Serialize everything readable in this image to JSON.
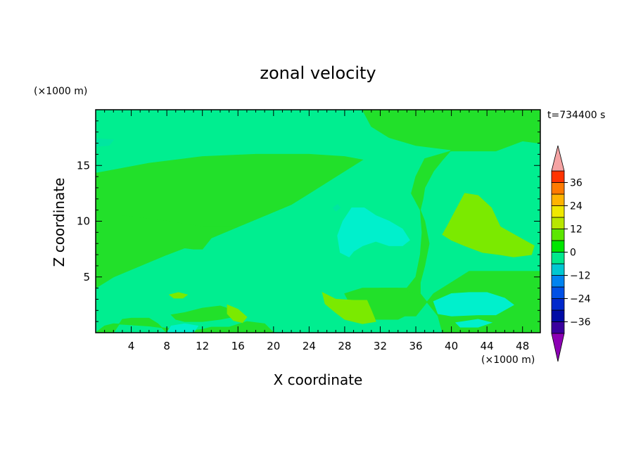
{
  "chart_data": {
    "type": "heatmap",
    "title": "zonal velocity",
    "xlabel": "X coordinate",
    "ylabel": "Z coordinate",
    "x_unit": "(×1000 m)",
    "y_unit": "(×1000 m)",
    "time_label": "t=734400 s",
    "xlim": [
      0,
      50
    ],
    "ylim": [
      0,
      20
    ],
    "x_ticks": [
      4,
      8,
      12,
      16,
      20,
      24,
      28,
      32,
      36,
      40,
      44,
      48
    ],
    "y_ticks": [
      5,
      10,
      15
    ],
    "colorbar": {
      "labels": [
        36,
        24,
        12,
        0,
        -12,
        -24,
        -36
      ],
      "levels": [
        -42,
        -36,
        -30,
        -24,
        -18,
        -12,
        -6,
        0,
        6,
        12,
        18,
        24,
        30,
        36,
        42
      ],
      "colors": [
        "#7d00a8",
        "#3a009e",
        "#000ba6",
        "#0028cc",
        "#0050e6",
        "#0083f0",
        "#00c7d1",
        "#00e88c",
        "#00e600",
        "#5ce600",
        "#b8e600",
        "#f0e800",
        "#ffb300",
        "#ff7a00",
        "#ff3300",
        "#e60000"
      ],
      "over_color": "#f5a3a3",
      "under_color": "#8c00b4"
    },
    "regions": [
      {
        "level": "0 to 6",
        "color": "#22e02a",
        "points": [
          [
            0,
            10.5
          ],
          [
            3,
            10.5
          ],
          [
            8,
            10
          ],
          [
            12,
            9.5
          ],
          [
            16,
            9.5
          ],
          [
            19,
            10.5
          ],
          [
            22,
            11.5
          ],
          [
            24,
            12.5
          ],
          [
            27,
            14
          ],
          [
            30,
            15.5
          ],
          [
            28,
            15.8
          ],
          [
            24,
            16
          ],
          [
            18,
            16
          ],
          [
            12,
            15.8
          ],
          [
            6,
            15.2
          ],
          [
            2,
            14.6
          ],
          [
            0,
            14.3
          ]
        ]
      },
      {
        "level": "0 to 6",
        "color": "#22e02a",
        "points": [
          [
            0,
            4
          ],
          [
            2,
            5
          ],
          [
            5,
            6
          ],
          [
            8,
            7
          ],
          [
            10,
            7.6
          ],
          [
            11,
            7.5
          ],
          [
            12,
            7.5
          ],
          [
            13,
            8.5
          ],
          [
            16,
            9.5
          ],
          [
            12,
            9.5
          ],
          [
            8,
            10
          ],
          [
            3,
            10.5
          ],
          [
            0,
            10.5
          ]
        ]
      },
      {
        "level": "0 to 6",
        "color": "#22e02a",
        "points": [
          [
            30,
            20
          ],
          [
            50,
            20
          ],
          [
            50,
            17
          ],
          [
            48,
            17.2
          ],
          [
            46,
            16.6
          ],
          [
            45,
            16.3
          ],
          [
            40,
            16.3
          ],
          [
            37,
            15.6
          ],
          [
            36,
            14
          ],
          [
            35.5,
            12.5
          ],
          [
            36.5,
            11
          ],
          [
            36.7,
            9
          ],
          [
            36.5,
            7
          ],
          [
            36,
            5
          ],
          [
            35,
            4
          ],
          [
            32,
            4
          ],
          [
            30,
            3.7
          ],
          [
            28,
            3.5
          ],
          [
            31,
            3.3
          ],
          [
            32,
            2
          ],
          [
            34,
            1.5
          ],
          [
            36,
            1.5
          ],
          [
            37,
            2.5
          ],
          [
            38,
            3.5
          ],
          [
            40,
            4.5
          ],
          [
            42,
            5.5
          ],
          [
            44,
            5.5
          ],
          [
            47,
            5.5
          ],
          [
            50,
            5.5
          ],
          [
            50,
            0
          ],
          [
            39,
            0
          ],
          [
            38.5,
            1.5
          ],
          [
            37.5,
            2.5
          ],
          [
            36.5,
            3.5
          ],
          [
            36.5,
            4.5
          ],
          [
            37,
            6
          ],
          [
            37.5,
            8
          ],
          [
            37,
            10
          ],
          [
            36.5,
            11
          ],
          [
            36.8,
            12
          ],
          [
            37,
            13
          ],
          [
            38,
            14.5
          ],
          [
            39,
            15.5
          ],
          [
            40,
            16.4
          ],
          [
            36,
            16.8
          ],
          [
            33,
            17.5
          ],
          [
            31,
            18.5
          ]
        ]
      },
      {
        "level": "0 to 6",
        "color": "#22e02a",
        "points": [
          [
            30,
            4
          ],
          [
            34,
            4
          ],
          [
            36,
            3.5
          ],
          [
            36,
            2
          ],
          [
            34,
            1.2
          ],
          [
            31,
            1.2
          ],
          [
            29,
            2
          ],
          [
            28,
            3.5
          ]
        ]
      },
      {
        "level": "0 to 6",
        "color": "#22e02a",
        "points": [
          [
            8.5,
            1.6
          ],
          [
            10,
            1.8
          ],
          [
            12,
            2.2
          ],
          [
            14,
            2.4
          ],
          [
            15.5,
            2
          ],
          [
            16,
            1.5
          ],
          [
            14,
            1.2
          ],
          [
            12,
            1
          ],
          [
            10,
            1
          ],
          [
            9,
            1.2
          ]
        ]
      },
      {
        "level": "0 to 6",
        "color": "#22e02a",
        "points": [
          [
            0,
            0
          ],
          [
            2,
            0
          ],
          [
            3,
            1.2
          ],
          [
            4,
            1.3
          ],
          [
            6,
            1.3
          ],
          [
            7,
            0.8
          ],
          [
            8,
            0
          ],
          [
            20,
            0
          ],
          [
            19,
            0.8
          ],
          [
            17,
            1
          ],
          [
            15,
            0.5
          ],
          [
            13,
            0.5
          ],
          [
            12,
            0.3
          ],
          [
            11,
            0.2
          ],
          [
            10,
            0.2
          ],
          [
            8,
            0.4
          ],
          [
            6,
            0.6
          ],
          [
            4,
            0.7
          ],
          [
            2,
            0.8
          ],
          [
            1,
            0.6
          ]
        ]
      },
      {
        "level": "6 to 12",
        "color": "#7bea00",
        "points": [
          [
            39.5,
            9.5
          ],
          [
            40.5,
            11
          ],
          [
            41.5,
            12.5
          ],
          [
            43,
            12.3
          ],
          [
            44.5,
            11.2
          ],
          [
            45.5,
            9.5
          ],
          [
            47.5,
            8.6
          ],
          [
            49.3,
            7.8
          ],
          [
            49,
            7
          ],
          [
            47,
            6.8
          ],
          [
            45.5,
            7
          ],
          [
            43.5,
            7.2
          ],
          [
            41.5,
            7.8
          ],
          [
            40,
            8.3
          ],
          [
            39,
            8.8
          ]
        ]
      },
      {
        "level": "6 to 12",
        "color": "#7bea00",
        "points": [
          [
            25.5,
            3.6
          ],
          [
            27,
            3
          ],
          [
            29,
            2.9
          ],
          [
            30.5,
            2.9
          ],
          [
            31,
            2
          ],
          [
            31.5,
            1
          ],
          [
            30,
            0.8
          ],
          [
            28,
            1.2
          ],
          [
            27,
            1.8
          ],
          [
            25.8,
            2.6
          ]
        ]
      },
      {
        "level": "6 to 12",
        "color": "#7bea00",
        "points": [
          [
            14.8,
            2.5
          ],
          [
            16,
            2.1
          ],
          [
            17,
            1.4
          ],
          [
            16.5,
            0.9
          ],
          [
            15.5,
            1.1
          ],
          [
            14.8,
            1.7
          ]
        ]
      },
      {
        "level": "6 to 12",
        "color": "#7bea00",
        "points": [
          [
            8.3,
            3.4
          ],
          [
            9.3,
            3.6
          ],
          [
            10.3,
            3.4
          ],
          [
            9.8,
            3.1
          ],
          [
            8.8,
            3.1
          ]
        ]
      },
      {
        "level": "-6 to 0",
        "color": "#00e6a0",
        "points": [
          [
            27.2,
            11.5
          ],
          [
            27.5,
            11.2
          ],
          [
            27,
            10.9
          ],
          [
            26.7,
            11.2
          ]
        ]
      },
      {
        "level": "-6 to 0",
        "color": "#00e6a0",
        "points": [
          [
            0,
            17.4
          ],
          [
            2,
            17.3
          ],
          [
            1.5,
            16.8
          ],
          [
            0,
            16.7
          ]
        ]
      },
      {
        "level": "-12 to -6",
        "color": "#00f0cc",
        "points": [
          [
            27.2,
            8.7
          ],
          [
            27.8,
            10
          ],
          [
            28.8,
            11.2
          ],
          [
            30.2,
            11.2
          ],
          [
            31.5,
            10.5
          ],
          [
            33,
            10
          ],
          [
            34.5,
            9.3
          ],
          [
            35.3,
            8.3
          ],
          [
            34.5,
            7.8
          ],
          [
            33,
            7.8
          ],
          [
            31.5,
            8.2
          ],
          [
            30,
            7.8
          ],
          [
            29,
            7.3
          ],
          [
            28.5,
            6.8
          ],
          [
            27.5,
            7.2
          ]
        ]
      },
      {
        "level": "-12 to -6",
        "color": "#00f0cc",
        "points": [
          [
            38,
            2.8
          ],
          [
            40,
            3.5
          ],
          [
            42,
            3.6
          ],
          [
            44,
            3.6
          ],
          [
            46,
            3.1
          ],
          [
            47,
            2.5
          ],
          [
            45,
            1.6
          ],
          [
            43,
            1.6
          ],
          [
            40,
            1.5
          ],
          [
            38.5,
            1.7
          ]
        ]
      },
      {
        "level": "-12 to -6",
        "color": "#00f0cc",
        "points": [
          [
            40.5,
            0.9
          ],
          [
            43,
            1.2
          ],
          [
            44.5,
            0.9
          ],
          [
            43,
            0.5
          ],
          [
            41,
            0.5
          ]
        ]
      },
      {
        "level": "-12 to -6",
        "color": "#00f0cc",
        "points": [
          [
            8,
            0
          ],
          [
            11,
            0
          ],
          [
            11.5,
            0.6
          ],
          [
            10,
            0.8
          ],
          [
            8.5,
            0.6
          ]
        ]
      }
    ]
  }
}
